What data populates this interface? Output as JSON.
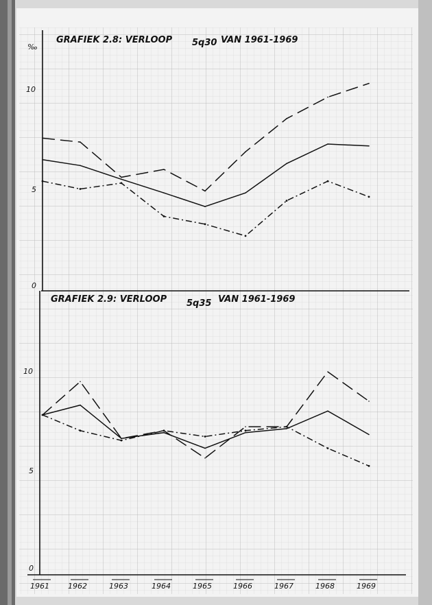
{
  "chart_data": [
    {
      "type": "line",
      "title": "GRAFIEK 2.8: VERLOOP",
      "title_sub": "5q30",
      "title_tail": "VAN 1961-1969",
      "ylabel": "‰",
      "ylim": [
        0,
        10
      ],
      "yticks": [
        "0",
        "5",
        "10"
      ],
      "categories": [
        "1961",
        "1962",
        "1963",
        "1964",
        "1965",
        "1966",
        "1967",
        "1968",
        "1969"
      ],
      "grid": true,
      "series": [
        {
          "style": "solid",
          "values": [
            6.5,
            6.2,
            5.5,
            4.8,
            4.1,
            4.8,
            6.3,
            7.3,
            7.2
          ]
        },
        {
          "style": "dashed",
          "values": [
            7.6,
            7.4,
            5.6,
            6.0,
            4.9,
            6.9,
            8.6,
            9.7,
            10.4
          ]
        },
        {
          "style": "dash-dot",
          "values": [
            5.4,
            5.0,
            5.3,
            3.6,
            3.2,
            2.6,
            4.4,
            5.4,
            4.6
          ]
        }
      ]
    },
    {
      "type": "line",
      "title": "GRAFIEK 2.9: VERLOOP",
      "title_sub": "5q35",
      "title_tail": "VAN 1961-1969",
      "ylim": [
        0,
        10
      ],
      "yticks": [
        "0",
        "5",
        "10"
      ],
      "categories": [
        "1961",
        "1962",
        "1963",
        "1964",
        "1965",
        "1966",
        "1967",
        "1968",
        "1969"
      ],
      "grid": true,
      "series": [
        {
          "style": "solid",
          "values": [
            7.8,
            8.3,
            6.6,
            6.9,
            6.1,
            6.9,
            7.1,
            8.0,
            6.8
          ]
        },
        {
          "style": "dashed",
          "values": [
            7.8,
            9.5,
            6.6,
            7.0,
            5.6,
            7.2,
            7.2,
            10.0,
            8.5
          ]
        },
        {
          "style": "dash-dot",
          "values": [
            7.8,
            7.0,
            6.5,
            7.0,
            6.7,
            7.0,
            7.2,
            6.1,
            5.2
          ]
        }
      ]
    }
  ]
}
